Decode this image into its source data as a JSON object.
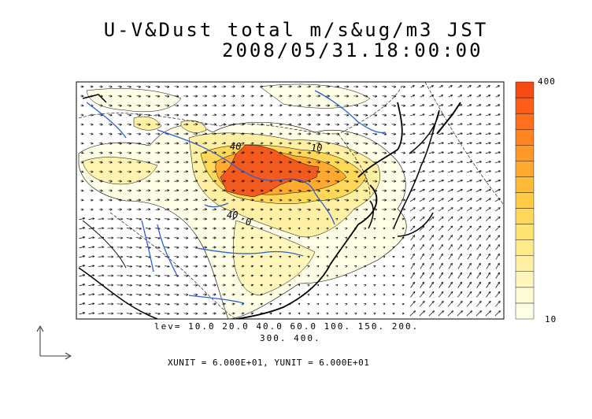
{
  "title": {
    "line1": "U-V&Dust total m/s&ug/m3 JST",
    "line2": "2008/05/31.18:00:00"
  },
  "levels": {
    "line1": "lev= 10.0 20.0 40.0 60.0 100. 150. 200.",
    "line2": "300. 400."
  },
  "units": "XUNIT = 6.000E+01, YUNIT = 6.000E+01",
  "colorbar": {
    "max_label": "400",
    "min_label": "10",
    "colors": [
      "#fefde6",
      "#fefbd4",
      "#fff6bc",
      "#fff0a4",
      "#ffea8a",
      "#ffe270",
      "#ffd85a",
      "#ffcb44",
      "#ffbb36",
      "#ffaa2e",
      "#ff9828",
      "#ff8422",
      "#ff701c",
      "#ff5c18",
      "#f84a14"
    ]
  },
  "map_labels": [
    "10",
    "40",
    "0",
    "40"
  ],
  "colors": {
    "river": "#2a5fd6",
    "coast": "#000000",
    "dust_high": "#f35a1e"
  }
}
